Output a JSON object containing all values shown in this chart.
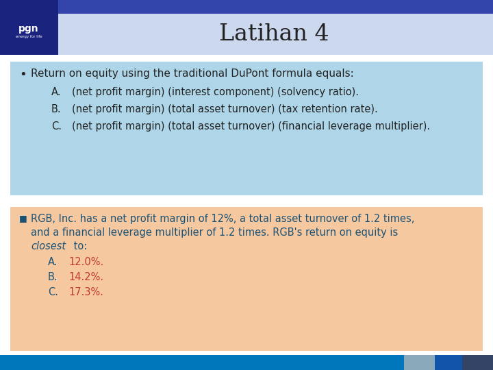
{
  "title": "Latihan 4",
  "header_bar_color": "#3344aa",
  "title_bg": "#ccd8ee",
  "left_box_color": "#1a237e",
  "box1_bg": "#aed6e8",
  "box2_bg": "#f5c8a0",
  "footer_bar_color": "#0077bb",
  "footer_bar2_color": "#8aaabb",
  "footer_bar3_color": "#1155aa",
  "footer_bar4_color": "#334466",
  "box1_bullet": "•",
  "box1_main": "Return on equity using the traditional DuPont formula equals:",
  "box1_A_label": "A.",
  "box1_A_text": "(net profit margin) (interest component) (solvency ratio).",
  "box1_B_label": "B.",
  "box1_B_text": "(net profit margin) (total asset turnover) (tax retention rate).",
  "box1_C_label": "C.",
  "box1_C_text": "(net profit margin) (total asset turnover) (financial leverage multiplier).",
  "box2_bullet": "■",
  "box2_line1": "RGB, Inc. has a net profit margin of 12%, a total asset turnover of 1.2 times,",
  "box2_line2": "and a financial leverage multiplier of 1.2 times. RGB's return on equity is",
  "box2_line3_italic": "closest",
  "box2_line3_rest": " to:",
  "box2_A_label": "A.",
  "box2_A_text": "12.0%.",
  "box2_B_label": "B.",
  "box2_B_text": "14.2%.",
  "box2_C_label": "C.",
  "box2_C_text": "17.3%.",
  "box2_text_color": "#1a5276",
  "box2_answer_color": "#c0392b",
  "text_color_black": "#222222"
}
